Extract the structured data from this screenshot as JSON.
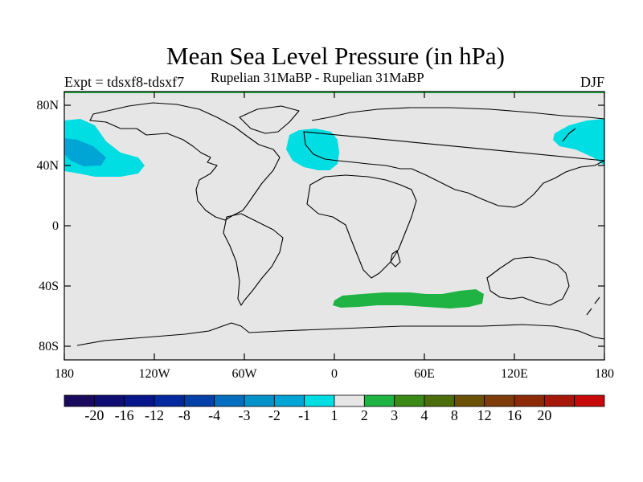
{
  "title": "Mean Sea Level Pressure (in hPa)",
  "subtitle": "Rupelian  31MaBP - Rupelian  31MaBP",
  "left_label": "Expt = tdsxf8-tdsxf7",
  "right_label": "DJF",
  "lat_ticks": [
    "80N",
    "40N",
    "0",
    "40S",
    "80S"
  ],
  "lon_ticks": [
    "180",
    "120W",
    "60W",
    "0",
    "60E",
    "120E",
    "180"
  ],
  "colors": {
    "ocean": "#e6e6e6",
    "neg_light": "#00dde3",
    "neg_mid": "#01a5d5",
    "pos_light": "#1fb344"
  },
  "colorbar": {
    "colors": [
      "#1a0a5e",
      "#0d0d72",
      "#06168a",
      "#0229a0",
      "#0440a8",
      "#046fbf",
      "#0592c9",
      "#01a5d5",
      "#00dde3",
      "#e6e6e6",
      "#1fb344",
      "#3b8a17",
      "#4b6d0c",
      "#6b5008",
      "#7d3c0a",
      "#8d2b09",
      "#a5180a",
      "#c80a0a"
    ],
    "labels": [
      "-20",
      "-16",
      "-12",
      "-8",
      "-4",
      "-3",
      "-2",
      "-1",
      "1",
      "2",
      "3",
      "4",
      "8",
      "12",
      "16",
      "20"
    ]
  }
}
